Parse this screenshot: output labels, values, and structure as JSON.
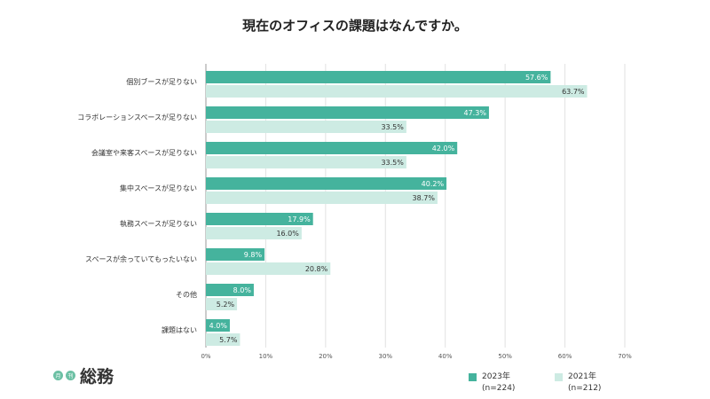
{
  "title": "現在のオフィスの課題はなんですか。",
  "logo": {
    "text": "総務",
    "badge": [
      "月",
      "刊"
    ]
  },
  "colors": {
    "series_2023": "#45b39d",
    "series_2021": "#cdebe3"
  },
  "legend": [
    {
      "name": "2023年",
      "n": "(n=224)"
    },
    {
      "name": "2021年",
      "n": "(n=212)"
    }
  ],
  "chart_data": {
    "type": "bar",
    "orientation": "horizontal",
    "title": "現在のオフィスの課題はなんですか。",
    "categories": [
      "個別ブースが足りない",
      "コラボレーションスペースが足りない",
      "会議室や来客スペースが足りない",
      "集中スペースが足りない",
      "執務スペースが足りない",
      "スペースが余っていてもったいない",
      "その他",
      "課題はない"
    ],
    "series": [
      {
        "name": "2023年",
        "values": [
          57.6,
          47.3,
          42.0,
          40.2,
          17.9,
          9.8,
          8.0,
          4.0
        ],
        "labels": [
          "57.6%",
          "47.3%",
          "42.0%",
          "40.2%",
          "17.9%",
          "9.8%",
          "8.0%",
          "4.0%"
        ]
      },
      {
        "name": "2021年",
        "values": [
          63.7,
          33.5,
          33.5,
          38.7,
          16.0,
          20.8,
          5.2,
          5.7
        ],
        "labels": [
          "63.7%",
          "33.5%",
          "33.5%",
          "38.7%",
          "16.0%",
          "20.8%",
          "5.2%",
          "5.7%"
        ]
      }
    ],
    "xlim": [
      0,
      70
    ],
    "x_ticks": [
      "0%",
      "10%",
      "20%",
      "30%",
      "40%",
      "50%",
      "60%",
      "70%"
    ],
    "grid": true,
    "legend_position": "bottom-right"
  }
}
